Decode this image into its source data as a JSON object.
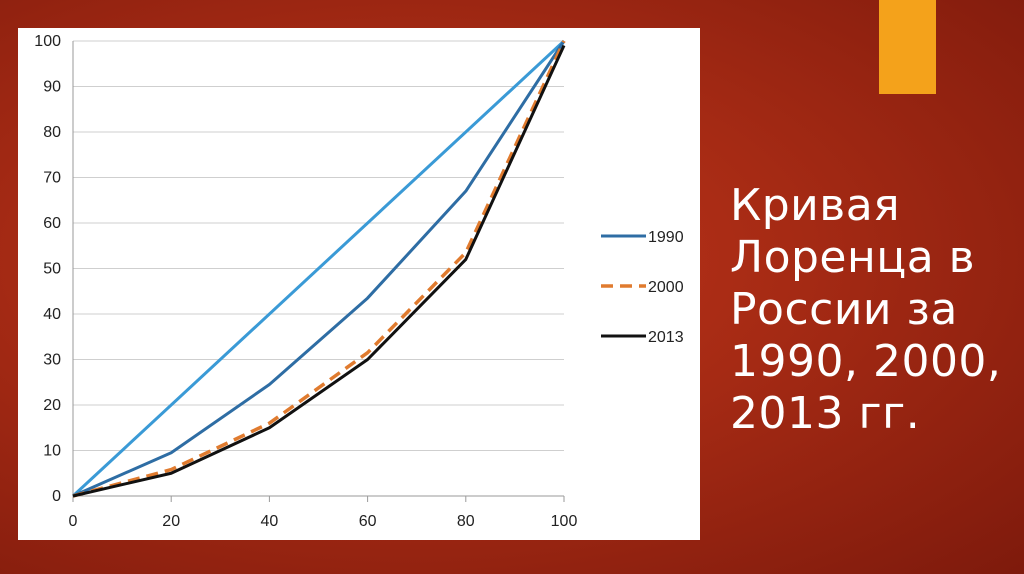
{
  "slide": {
    "title_lines": [
      "Кривая",
      "Лоренца в",
      "России за",
      "1990, 2000,",
      "2013 гг."
    ],
    "accent_color": "#f4a21b"
  },
  "chart_data": {
    "type": "line",
    "x": [
      0,
      20,
      40,
      60,
      80,
      100
    ],
    "xlim": [
      0,
      100
    ],
    "ylim": [
      0,
      100
    ],
    "x_ticks": [
      "0",
      "20",
      "40",
      "60",
      "80",
      "100"
    ],
    "y_ticks": [
      "0",
      "10",
      "20",
      "30",
      "40",
      "50",
      "60",
      "70",
      "80",
      "90",
      "100"
    ],
    "grid": "horizontal",
    "legend_position": "right",
    "equality_line": {
      "x": [
        0,
        100
      ],
      "y": [
        0,
        100
      ],
      "color": "#3a9ad6"
    },
    "series": [
      {
        "name": "1990",
        "values": [
          0,
          9.5,
          24.5,
          43.5,
          67,
          100
        ],
        "color": "#2e6da4",
        "style": "solid"
      },
      {
        "name": "2000",
        "values": [
          0,
          5.8,
          16,
          31.5,
          53.5,
          100
        ],
        "color": "#e07b2f",
        "style": "dashed"
      },
      {
        "name": "2013",
        "values": [
          0,
          5,
          15,
          30,
          52,
          99
        ],
        "color": "#111111",
        "style": "solid"
      }
    ]
  }
}
